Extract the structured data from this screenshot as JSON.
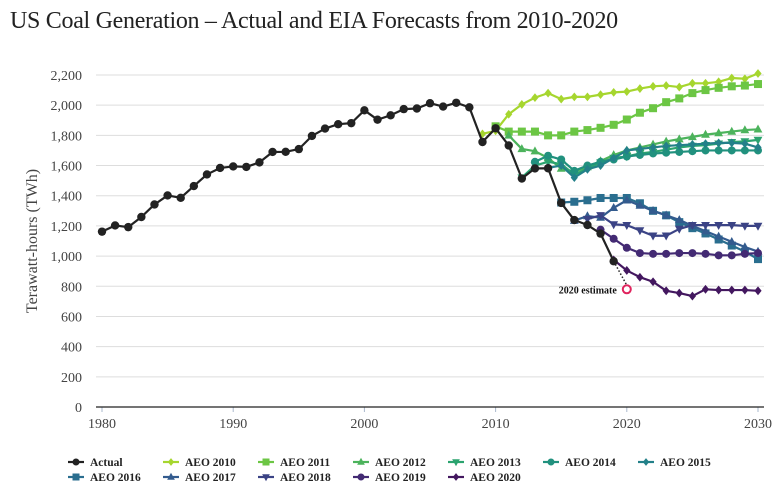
{
  "chart_data": {
    "type": "line",
    "title": "US Coal Generation – Actual and EIA Forecasts from 2010-2020",
    "xlabel": "",
    "ylabel": "Terawatt-hours (TWh)",
    "xlim": [
      1980,
      2030
    ],
    "ylim": [
      0,
      2200
    ],
    "x_ticks": [
      1980,
      1990,
      2000,
      2010,
      2020,
      2030
    ],
    "y_ticks": [
      0,
      200,
      400,
      600,
      800,
      1000,
      1200,
      1400,
      1600,
      1800,
      2000,
      2200
    ],
    "x_tick_labels": [
      "1980",
      "1990",
      "2000",
      "2010",
      "2020",
      "2030"
    ],
    "y_tick_labels": [
      "0",
      "200",
      "400",
      "600",
      "800",
      "1,000",
      "1,200",
      "1,400",
      "1,600",
      "1,800",
      "2,000",
      "2,200"
    ],
    "grid": "horizontal",
    "legend_position": "bottom",
    "series": [
      {
        "name": "Actual",
        "color": "#222222",
        "marker": "circle",
        "start": 1980,
        "values": [
          1162,
          1203,
          1192,
          1259,
          1342,
          1402,
          1386,
          1464,
          1541,
          1584,
          1594,
          1591,
          1621,
          1690,
          1691,
          1709,
          1796,
          1845,
          1874,
          1881,
          1966,
          1904,
          1933,
          1974,
          1978,
          2013,
          1991,
          2016,
          1986,
          1756,
          1847,
          1733,
          1514,
          1581,
          1582,
          1352,
          1239,
          1206,
          1149,
          966
        ]
      },
      {
        "name": "AEO 2010",
        "color": "#a6d62f",
        "marker": "diamond",
        "start": 2009,
        "values": [
          1810,
          1830,
          1940,
          2005,
          2050,
          2080,
          2040,
          2055,
          2055,
          2070,
          2085,
          2090,
          2110,
          2125,
          2130,
          2120,
          2145,
          2145,
          2155,
          2180,
          2175,
          2210
        ]
      },
      {
        "name": "AEO 2011",
        "color": "#6cc644",
        "marker": "square",
        "start": 2010,
        "values": [
          1860,
          1825,
          1825,
          1825,
          1800,
          1800,
          1825,
          1835,
          1850,
          1870,
          1905,
          1950,
          1980,
          2020,
          2045,
          2080,
          2100,
          2115,
          2125,
          2130,
          2140
        ]
      },
      {
        "name": "AEO 2012",
        "color": "#4cb35c",
        "marker": "triangle-up",
        "start": 2011,
        "values": [
          1800,
          1710,
          1695,
          1650,
          1580,
          1560,
          1590,
          1630,
          1670,
          1700,
          1720,
          1740,
          1760,
          1775,
          1790,
          1805,
          1815,
          1825,
          1835,
          1840
        ]
      },
      {
        "name": "AEO 2013",
        "color": "#2ba36f",
        "marker": "triangle-down",
        "start": 2012,
        "values": [
          1520,
          1600,
          1625,
          1610,
          1540,
          1580,
          1620,
          1650,
          1660,
          1680,
          1690,
          1705,
          1720,
          1730,
          1735,
          1745,
          1755,
          1760,
          1770
        ]
      },
      {
        "name": "AEO 2014",
        "color": "#21917e",
        "marker": "circle",
        "start": 2013,
        "values": [
          1625,
          1665,
          1640,
          1565,
          1600,
          1625,
          1640,
          1660,
          1670,
          1680,
          1685,
          1690,
          1695,
          1700,
          1700,
          1700,
          1700,
          1700
        ]
      },
      {
        "name": "AEO 2015",
        "color": "#238089",
        "marker": "diamond",
        "start": 2014,
        "values": [
          1585,
          1600,
          1520,
          1575,
          1600,
          1650,
          1700,
          1710,
          1720,
          1730,
          1735,
          1740,
          1745,
          1750,
          1750,
          1745,
          1720
        ]
      },
      {
        "name": "AEO 2016",
        "color": "#2a6e8f",
        "marker": "square",
        "start": 2015,
        "values": [
          1355,
          1360,
          1370,
          1385,
          1385,
          1385,
          1350,
          1300,
          1270,
          1225,
          1185,
          1150,
          1110,
          1070,
          1030,
          980
        ]
      },
      {
        "name": "AEO 2017",
        "color": "#335b8e",
        "marker": "triangle-up",
        "start": 2016,
        "values": [
          1235,
          1265,
          1255,
          1320,
          1370,
          1335,
          1300,
          1270,
          1240,
          1200,
          1165,
          1130,
          1095,
          1060,
          1030
        ]
      },
      {
        "name": "AEO 2018",
        "color": "#3b4385",
        "marker": "triangle-down",
        "start": 2017,
        "values": [
          1245,
          1270,
          1210,
          1205,
          1170,
          1135,
          1135,
          1180,
          1205,
          1205,
          1205,
          1205,
          1200,
          1200
        ]
      },
      {
        "name": "AEO 2019",
        "color": "#432a73",
        "marker": "circle",
        "start": 2018,
        "values": [
          1175,
          1115,
          1055,
          1020,
          1015,
          1015,
          1020,
          1020,
          1015,
          1005,
          1005,
          1015,
          1020
        ]
      },
      {
        "name": "AEO 2020",
        "color": "#43175f",
        "marker": "diamond",
        "start": 2019,
        "values": [
          975,
          905,
          860,
          830,
          770,
          755,
          735,
          780,
          775,
          775,
          775,
          770
        ]
      }
    ],
    "annotations": [
      {
        "text": "2020 estimate",
        "x": 2020,
        "y": 780,
        "marker": "open-circle",
        "color": "#e0245e",
        "connector": "dotted from 2019 actual"
      }
    ]
  }
}
